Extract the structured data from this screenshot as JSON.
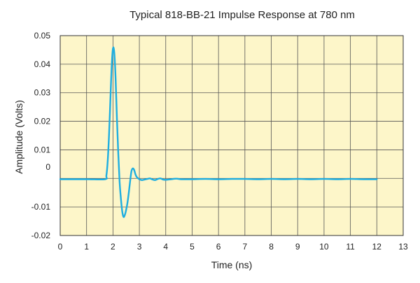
{
  "chart_data": {
    "type": "line",
    "title": "Typical 818-BB-21 Impulse Response at 780 nm",
    "xlabel": "Time (ns)",
    "ylabel": "Amplitude (Volts)",
    "xlim": [
      0,
      13
    ],
    "ylim": [
      -0.02,
      0.05
    ],
    "x_ticks": [
      0,
      1,
      2,
      3,
      4,
      5,
      6,
      7,
      8,
      9,
      10,
      11,
      12,
      13
    ],
    "y_ticks": [
      {
        "value": -0.02,
        "label": "-0.02"
      },
      {
        "value": -0.01,
        "label": "-0.01"
      },
      {
        "value": 0.01,
        "label": "0.01"
      },
      {
        "value": 0.02,
        "label": "0.02"
      },
      {
        "value": 0.03,
        "label": "0.03"
      },
      {
        "value": 0.04,
        "label": "0.04"
      },
      {
        "value": 0.05,
        "label": "0.05"
      }
    ],
    "y_extra_label": {
      "value": 0.004,
      "label": "0"
    },
    "grid": true,
    "plot_background": "#fdf6c9",
    "series": [
      {
        "color": "#1eaee0",
        "x": [
          0.0,
          1.0,
          1.7,
          1.75,
          1.8,
          1.85,
          1.9,
          1.95,
          2.0,
          2.05,
          2.1,
          2.15,
          2.2,
          2.25,
          2.3,
          2.35,
          2.4,
          2.45,
          2.5,
          2.55,
          2.6,
          2.65,
          2.7,
          2.75,
          2.8,
          2.85,
          2.9,
          3.0,
          3.1,
          3.2,
          3.3,
          3.4,
          3.5,
          3.6,
          3.7,
          3.8,
          3.9,
          4.0,
          4.2,
          4.4,
          4.6,
          5.0,
          5.5,
          6.0,
          6.5,
          7.0,
          7.5,
          8.0,
          8.5,
          9.0,
          9.5,
          10.0,
          10.5,
          11.0,
          11.5,
          12.0
        ],
        "y": [
          -0.0003,
          -0.0003,
          -0.0003,
          0.001,
          0.006,
          0.015,
          0.027,
          0.039,
          0.0455,
          0.044,
          0.035,
          0.021,
          0.009,
          -0.001,
          -0.007,
          -0.0115,
          -0.0135,
          -0.0128,
          -0.011,
          -0.0085,
          -0.005,
          -0.001,
          0.0025,
          0.0035,
          0.003,
          0.0015,
          0.0005,
          -0.0003,
          -0.0006,
          -0.0004,
          -0.0002,
          0.0,
          -0.0004,
          -0.0006,
          -0.0002,
          0.0,
          -0.0004,
          -0.0005,
          -0.0003,
          -0.0001,
          -0.0003,
          -0.0003,
          -0.0002,
          -0.0003,
          -0.0002,
          -0.0002,
          -0.0003,
          -0.0002,
          -0.0003,
          -0.0002,
          -0.0003,
          -0.0002,
          -0.0003,
          -0.0002,
          -0.0003,
          -0.0003
        ]
      }
    ]
  }
}
